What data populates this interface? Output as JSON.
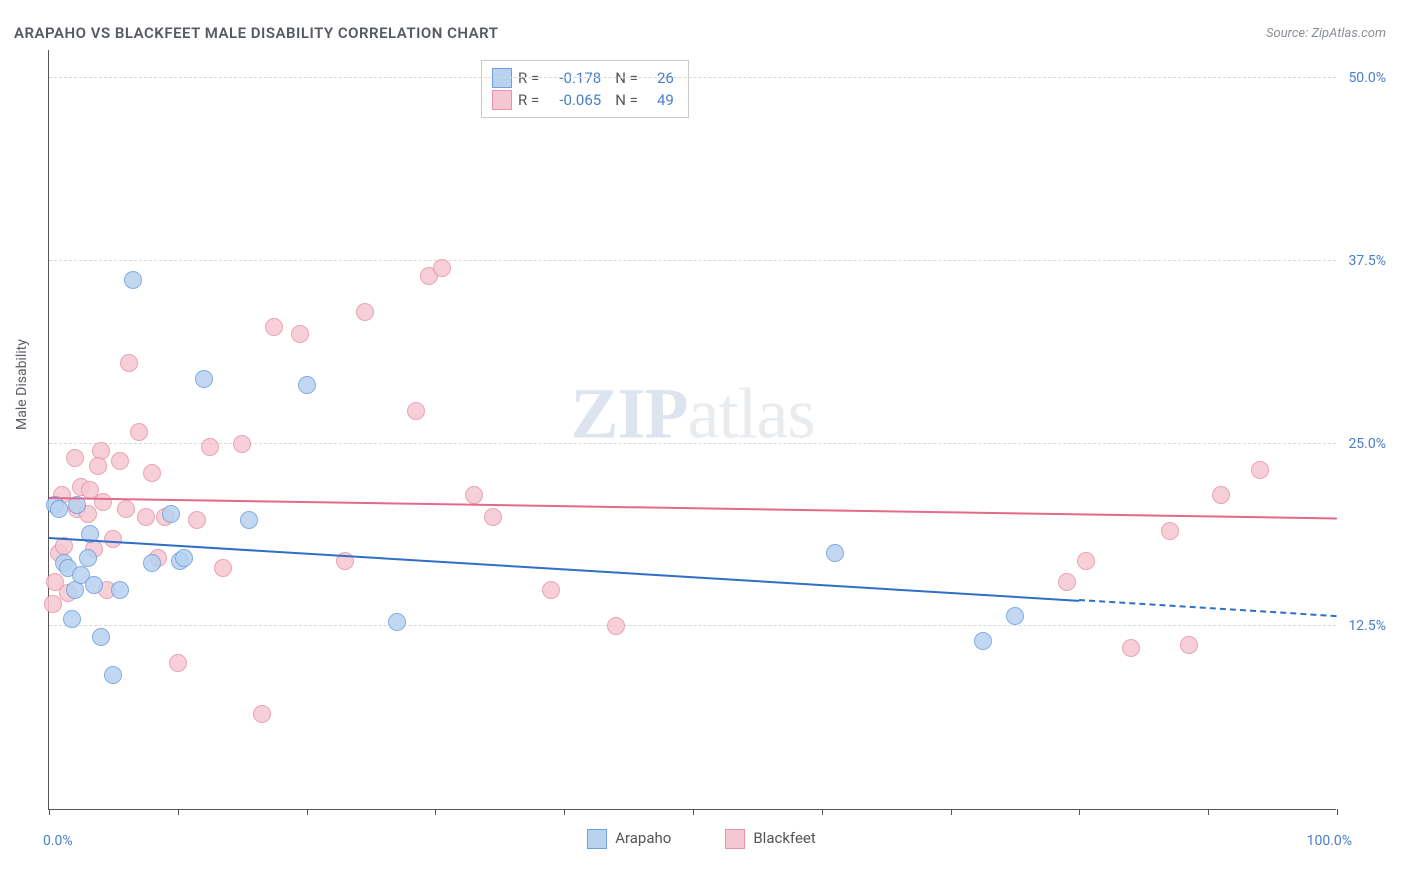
{
  "title": "ARAPAHO VS BLACKFEET MALE DISABILITY CORRELATION CHART",
  "source_prefix": "Source: ",
  "source_name": "ZipAtlas.com",
  "ylabel": "Male Disability",
  "watermark_a": "ZIP",
  "watermark_b": "atlas",
  "chart": {
    "type": "scatter",
    "xlim": [
      0,
      100
    ],
    "ylim": [
      0,
      52
    ],
    "x_ticks": [
      0,
      10,
      20,
      30,
      40,
      50,
      60,
      70,
      80,
      90,
      100
    ],
    "y_gridlines": [
      12.5,
      25.0,
      37.5,
      50.0
    ],
    "y_tick_labels": [
      "12.5%",
      "25.0%",
      "37.5%",
      "50.0%"
    ],
    "x_min_label": "0.0%",
    "x_max_label": "100.0%",
    "background_color": "#ffffff",
    "grid_color": "#d6d9dc",
    "axis_label_color": "#4a7ec9",
    "marker_radius": 9,
    "marker_fill_opacity": 0.35,
    "series": [
      {
        "name": "Arapaho",
        "color_stroke": "#6ea0de",
        "color_fill": "#b8d2f0",
        "trend_color": "#2f6fc6",
        "trend_width": 2.5,
        "R": "-0.178",
        "N": "26",
        "trend": {
          "x1": 0,
          "y1": 18.5,
          "x2_solid": 80,
          "y2_solid": 14.2,
          "x2": 100,
          "y2": 13.1
        },
        "points": [
          {
            "x": 0.5,
            "y": 20.8
          },
          {
            "x": 0.8,
            "y": 20.5
          },
          {
            "x": 1.2,
            "y": 16.8
          },
          {
            "x": 1.5,
            "y": 16.5
          },
          {
            "x": 1.8,
            "y": 13.0
          },
          {
            "x": 2.0,
            "y": 15.0
          },
          {
            "x": 2.5,
            "y": 16.0
          },
          {
            "x": 3.0,
            "y": 17.2
          },
          {
            "x": 3.2,
            "y": 18.8
          },
          {
            "x": 3.5,
            "y": 15.3
          },
          {
            "x": 4.0,
            "y": 11.8
          },
          {
            "x": 5.0,
            "y": 9.2
          },
          {
            "x": 5.5,
            "y": 15.0
          },
          {
            "x": 6.5,
            "y": 36.2
          },
          {
            "x": 8.0,
            "y": 16.8
          },
          {
            "x": 9.5,
            "y": 20.2
          },
          {
            "x": 10.2,
            "y": 17.0
          },
          {
            "x": 10.5,
            "y": 17.2
          },
          {
            "x": 12.0,
            "y": 29.4
          },
          {
            "x": 15.5,
            "y": 19.8
          },
          {
            "x": 20.0,
            "y": 29.0
          },
          {
            "x": 27.0,
            "y": 12.8
          },
          {
            "x": 61.0,
            "y": 17.5
          },
          {
            "x": 72.5,
            "y": 11.5
          },
          {
            "x": 75.0,
            "y": 13.2
          },
          {
            "x": 2.2,
            "y": 20.8
          }
        ]
      },
      {
        "name": "Blackfeet",
        "color_stroke": "#e894a8",
        "color_fill": "#f5c7d2",
        "trend_color": "#e36a8a",
        "trend_width": 2.5,
        "R": "-0.065",
        "N": "49",
        "trend": {
          "x1": 0,
          "y1": 21.2,
          "x2_solid": 100,
          "y2_solid": 19.8,
          "x2": 100,
          "y2": 19.8
        },
        "points": [
          {
            "x": 0.3,
            "y": 14.0
          },
          {
            "x": 0.8,
            "y": 17.5
          },
          {
            "x": 1.0,
            "y": 21.5
          },
          {
            "x": 1.2,
            "y": 18.0
          },
          {
            "x": 1.5,
            "y": 14.8
          },
          {
            "x": 2.0,
            "y": 24.0
          },
          {
            "x": 2.2,
            "y": 20.5
          },
          {
            "x": 2.5,
            "y": 22.0
          },
          {
            "x": 3.0,
            "y": 20.2
          },
          {
            "x": 3.2,
            "y": 21.8
          },
          {
            "x": 3.5,
            "y": 17.8
          },
          {
            "x": 4.0,
            "y": 24.5
          },
          {
            "x": 4.2,
            "y": 21.0
          },
          {
            "x": 4.5,
            "y": 15.0
          },
          {
            "x": 5.0,
            "y": 18.5
          },
          {
            "x": 5.5,
            "y": 23.8
          },
          {
            "x": 6.0,
            "y": 20.5
          },
          {
            "x": 6.2,
            "y": 30.5
          },
          {
            "x": 7.0,
            "y": 25.8
          },
          {
            "x": 7.5,
            "y": 20.0
          },
          {
            "x": 8.0,
            "y": 23.0
          },
          {
            "x": 8.5,
            "y": 17.2
          },
          {
            "x": 9.0,
            "y": 20.0
          },
          {
            "x": 10.0,
            "y": 10.0
          },
          {
            "x": 11.5,
            "y": 19.8
          },
          {
            "x": 12.5,
            "y": 24.8
          },
          {
            "x": 13.5,
            "y": 16.5
          },
          {
            "x": 15.0,
            "y": 25.0
          },
          {
            "x": 16.5,
            "y": 6.5
          },
          {
            "x": 17.5,
            "y": 33.0
          },
          {
            "x": 19.5,
            "y": 32.5
          },
          {
            "x": 23.0,
            "y": 17.0
          },
          {
            "x": 24.5,
            "y": 34.0
          },
          {
            "x": 28.5,
            "y": 27.2
          },
          {
            "x": 29.5,
            "y": 36.5
          },
          {
            "x": 30.5,
            "y": 37.0
          },
          {
            "x": 33.0,
            "y": 21.5
          },
          {
            "x": 34.5,
            "y": 20.0
          },
          {
            "x": 39.0,
            "y": 15.0
          },
          {
            "x": 44.0,
            "y": 12.5
          },
          {
            "x": 79.0,
            "y": 15.5
          },
          {
            "x": 80.5,
            "y": 17.0
          },
          {
            "x": 84.0,
            "y": 11.0
          },
          {
            "x": 87.0,
            "y": 19.0
          },
          {
            "x": 88.5,
            "y": 11.2
          },
          {
            "x": 91.0,
            "y": 21.5
          },
          {
            "x": 94.0,
            "y": 23.2
          },
          {
            "x": 3.8,
            "y": 23.5
          },
          {
            "x": 0.5,
            "y": 15.5
          }
        ]
      }
    ]
  },
  "legend_bottom": [
    {
      "label": "Arapaho",
      "fill": "#b8d2f0",
      "stroke": "#6ea0de"
    },
    {
      "label": "Blackfeet",
      "fill": "#f5c7d2",
      "stroke": "#e894a8"
    }
  ]
}
